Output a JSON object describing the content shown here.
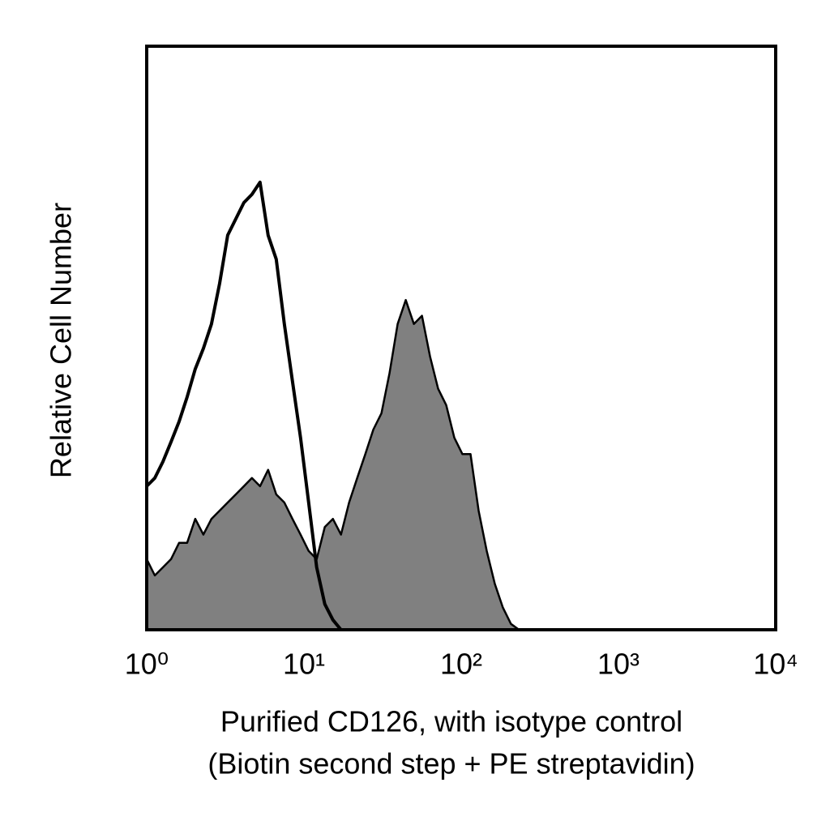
{
  "chart_data": {
    "type": "histogram-overlay",
    "x_label_lines": [
      "Purified CD126, with isotype control",
      "(Biotin second step + PE streptavidin)"
    ],
    "y_label": "Relative Cell Number",
    "xscale": "log",
    "xlim": [
      1,
      10000
    ],
    "ylim": [
      0,
      100
    ],
    "xticks": [
      {
        "value": 1,
        "label": "10⁰"
      },
      {
        "value": 10,
        "label": "10¹"
      },
      {
        "value": 100,
        "label": "10²"
      },
      {
        "value": 1000,
        "label": "10³"
      },
      {
        "value": 10000,
        "label": "10⁴"
      }
    ],
    "grid": false,
    "x": [
      1.0,
      1.126,
      1.268,
      1.427,
      1.607,
      1.809,
      2.037,
      2.293,
      2.581,
      2.906,
      3.272,
      3.684,
      4.148,
      4.67,
      5.257,
      5.919,
      6.664,
      7.503,
      8.446,
      9.509,
      10.71,
      12.05,
      13.57,
      15.28,
      17.2,
      19.36,
      21.8,
      24.55,
      27.63,
      31.11,
      35.03,
      39.44,
      44.4,
      49.99,
      56.28,
      63.36,
      71.33,
      80.31,
      90.42,
      101.8,
      114.6,
      129.0,
      145.3,
      163.5,
      184.1,
      207.3,
      233.4
    ],
    "series": [
      {
        "color": "#808080",
        "filled": true,
        "values": [
          12.1,
          9.3,
          10.7,
          12.1,
          14.9,
          14.9,
          19.0,
          16.3,
          19.0,
          20.4,
          21.8,
          23.2,
          24.6,
          26.0,
          24.6,
          27.4,
          23.2,
          21.8,
          19.0,
          16.3,
          13.5,
          12.1,
          17.6,
          19.0,
          16.3,
          21.8,
          26.0,
          30.1,
          34.3,
          37.1,
          44.0,
          52.4,
          56.5,
          52.4,
          53.8,
          46.8,
          41.3,
          38.5,
          32.9,
          30.1,
          30.1,
          20.4,
          13.5,
          7.9,
          3.8,
          1.0,
          0
        ]
      },
      {
        "color": "#000000",
        "filled": false,
        "values": [
          24.6,
          26.0,
          28.8,
          32.2,
          35.7,
          39.9,
          44.7,
          48.2,
          52.4,
          59.3,
          67.6,
          70.4,
          73.2,
          74.6,
          76.7,
          67.6,
          63.5,
          52.4,
          42.6,
          32.9,
          21.8,
          10.7,
          4.4,
          1.7,
          0,
          0,
          0,
          0,
          0,
          0,
          0,
          0,
          0,
          0,
          0,
          0,
          0,
          0,
          0,
          0,
          0,
          0,
          0,
          0,
          0,
          0,
          0
        ]
      }
    ]
  }
}
